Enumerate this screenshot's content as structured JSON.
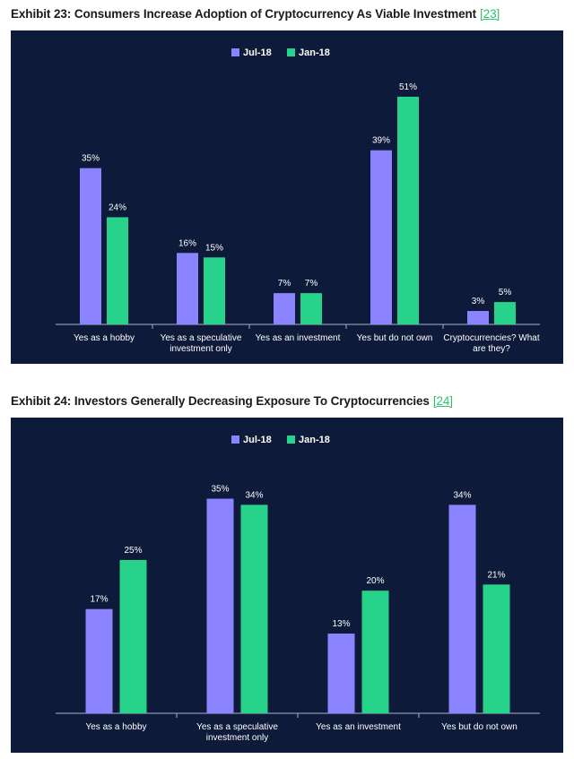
{
  "exhibits": [
    {
      "title": "Exhibit 23: Consumers Increase Adoption of Cryptocurrency As Viable Investment",
      "ref": "[23]"
    },
    {
      "title": "Exhibit 24: Investors Generally Decreasing Exposure To Cryptocurrencies",
      "ref": "[24]"
    }
  ],
  "colors": {
    "background": "#0e1a3a",
    "jul18": "#8b83ff",
    "jan18": "#27d38a",
    "axis": "#aab0c8"
  },
  "chart_data": [
    {
      "type": "bar",
      "categories": [
        "Yes as a hobby",
        "Yes as a speculative investment only",
        "Yes as an investment",
        "Yes but do not own",
        "Cryptocurrencies? What are they?"
      ],
      "series": [
        {
          "name": "Jul-18",
          "values": [
            35,
            16,
            7,
            39,
            3
          ]
        },
        {
          "name": "Jan-18",
          "values": [
            24,
            15,
            7,
            51,
            5
          ]
        }
      ],
      "value_suffix": "%",
      "legend": "top-center",
      "grid": false
    },
    {
      "type": "bar",
      "categories": [
        "Yes as a hobby",
        "Yes as a speculative investment only",
        "Yes as an investment",
        "Yes but do not own"
      ],
      "series": [
        {
          "name": "Jul-18",
          "values": [
            17,
            35,
            13,
            34
          ]
        },
        {
          "name": "Jan-18",
          "values": [
            25,
            34,
            20,
            21
          ]
        }
      ],
      "value_suffix": "%",
      "legend": "top-center",
      "grid": false
    }
  ]
}
